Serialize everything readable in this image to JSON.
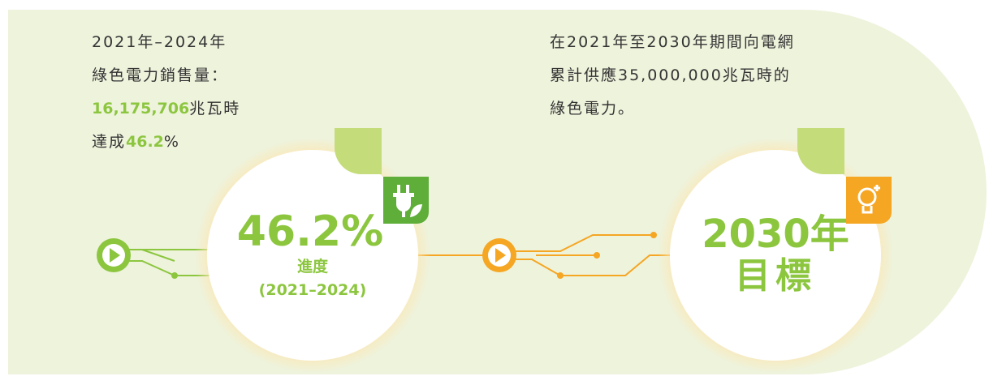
{
  "left_note": {
    "line1": "2021年–2024年",
    "line2": "綠色電力銷售量：",
    "line3": {
      "figure": "16,175,706",
      "unit": "兆瓦時"
    },
    "line4": {
      "prefix": "達成",
      "figure": "46.2",
      "unit": "%"
    }
  },
  "progress": {
    "value": "46.2%",
    "label": "進度",
    "period": "(2021–2024)"
  },
  "target_note": {
    "lines": [
      "在2021年至2030年期間向電網",
      "累計供應35,000,000兆瓦時的",
      "綠色電力。"
    ]
  },
  "target": {
    "year": "2030年",
    "label": "目標"
  }
}
